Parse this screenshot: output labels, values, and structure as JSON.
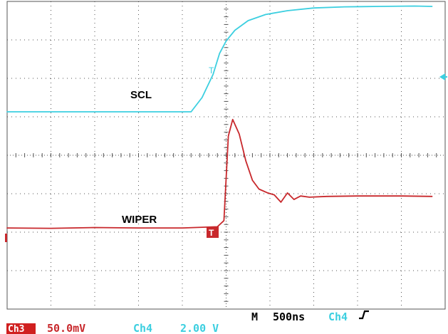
{
  "chart_data": {
    "type": "line",
    "title": "",
    "xlabel": "",
    "ylabel": "",
    "grid": true,
    "divisions": {
      "x": 10,
      "y": 8
    },
    "xlim": [
      0,
      10
    ],
    "ylim": [
      -4,
      4
    ],
    "series": [
      {
        "name": "SCL",
        "color": "#3ccfe0",
        "x": [
          0,
          1,
          2,
          3,
          4.2,
          4.45,
          4.7,
          4.85,
          5.0,
          5.2,
          5.5,
          5.9,
          6.4,
          7.0,
          7.7,
          8.5,
          9.3,
          9.7
        ],
        "y": [
          1.13,
          1.13,
          1.13,
          1.13,
          1.13,
          1.5,
          2.1,
          2.65,
          2.97,
          3.25,
          3.5,
          3.66,
          3.76,
          3.83,
          3.86,
          3.87,
          3.88,
          3.87
        ]
      },
      {
        "name": "WIPER",
        "color": "#c8282c",
        "x": [
          0,
          1,
          2,
          3,
          4.0,
          4.8,
          4.95,
          5.05,
          5.15,
          5.3,
          5.45,
          5.6,
          5.75,
          5.95,
          6.1,
          6.25,
          6.4,
          6.55,
          6.7,
          6.9,
          7.3,
          8.0,
          9.0,
          9.7
        ],
        "y": [
          -1.89,
          -1.9,
          -1.88,
          -1.89,
          -1.89,
          -1.86,
          -1.7,
          0.5,
          0.93,
          0.55,
          -0.15,
          -0.65,
          -0.88,
          -0.98,
          -1.03,
          -1.22,
          -0.98,
          -1.15,
          -1.06,
          -1.09,
          -1.07,
          -1.06,
          -1.06,
          -1.07
        ]
      }
    ],
    "annotations": {
      "scl_label": "SCL",
      "wiper_label": "WIPER",
      "trigger_marker": "T"
    }
  },
  "readout": {
    "ch3_badge": "Ch3",
    "ch3_scale": "50.0mV",
    "ch4_name": "Ch4",
    "ch4_scale": "2.00 V",
    "timebase_prefix": "M",
    "timebase_value": "500ns",
    "trigger_source": "Ch4",
    "trigger_slope_icon": "rising-edge-icon"
  },
  "colors": {
    "ch3": "#c8282c",
    "ch4": "#3ccfe0",
    "grid": "#555555",
    "ch3_badge_bg": "#d02020"
  }
}
